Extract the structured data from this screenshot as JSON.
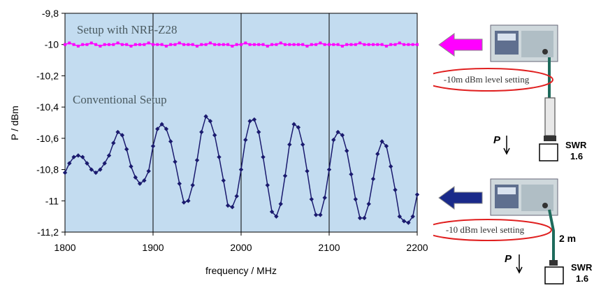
{
  "chart_data": {
    "type": "line",
    "xlabel": "frequency / MHz",
    "ylabel": "P / dBm",
    "xlim": [
      1800,
      2200
    ],
    "ylim": [
      -11.2,
      -9.8
    ],
    "x_ticks": [
      1800,
      1900,
      2000,
      2100,
      2200
    ],
    "y_ticks": [
      -9.8,
      -10,
      -10.2,
      -10.4,
      -10.6,
      -10.8,
      -11,
      -11.2
    ],
    "x_tick_labels": [
      "1800",
      "1900",
      "2000",
      "2100",
      "2200"
    ],
    "y_tick_labels": [
      "-9,8",
      "-10",
      "-10,2",
      "-10,4",
      "-10,6",
      "-10,8",
      "-11",
      "-11,2"
    ],
    "grid": "vertical lines at x ticks",
    "annotations": [
      "Setup with NRP-Z28",
      "Conventional Setup"
    ],
    "series": [
      {
        "color": "#ff00ff",
        "marker": "square",
        "x": [
          1800,
          1805,
          1810,
          1815,
          1820,
          1825,
          1830,
          1835,
          1840,
          1845,
          1850,
          1855,
          1860,
          1865,
          1870,
          1875,
          1880,
          1885,
          1890,
          1895,
          1900,
          1905,
          1910,
          1915,
          1920,
          1925,
          1930,
          1935,
          1940,
          1945,
          1950,
          1955,
          1960,
          1965,
          1970,
          1975,
          1980,
          1985,
          1990,
          1995,
          2000,
          2005,
          2010,
          2015,
          2020,
          2025,
          2030,
          2035,
          2040,
          2045,
          2050,
          2055,
          2060,
          2065,
          2070,
          2075,
          2080,
          2085,
          2090,
          2095,
          2100,
          2105,
          2110,
          2115,
          2120,
          2125,
          2130,
          2135,
          2140,
          2145,
          2150,
          2155,
          2160,
          2165,
          2170,
          2175,
          2180,
          2185,
          2190,
          2195,
          2200
        ],
        "y": [
          -10.0,
          -9.99,
          -10.0,
          -10.01,
          -10.0,
          -10.0,
          -9.99,
          -10.0,
          -10.01,
          -10.0,
          -10.0,
          -10.0,
          -9.99,
          -10.0,
          -10.0,
          -10.01,
          -10.0,
          -10.0,
          -10.0,
          -9.99,
          -10.0,
          -10.0,
          -10.0,
          -10.01,
          -10.0,
          -10.0,
          -9.99,
          -10.0,
          -10.0,
          -10.0,
          -10.01,
          -10.0,
          -10.0,
          -9.99,
          -10.0,
          -10.0,
          -10.0,
          -10.0,
          -10.01,
          -10.0,
          -10.0,
          -9.99,
          -10.0,
          -10.0,
          -10.0,
          -10.0,
          -10.01,
          -10.0,
          -10.0,
          -9.99,
          -10.0,
          -10.0,
          -10.0,
          -10.0,
          -10.0,
          -10.01,
          -10.0,
          -10.0,
          -9.99,
          -10.0,
          -10.0,
          -10.0,
          -10.0,
          -10.01,
          -10.0,
          -10.0,
          -10.0,
          -9.99,
          -10.0,
          -10.0,
          -10.0,
          -10.0,
          -10.0,
          -10.01,
          -10.0,
          -10.0,
          -9.99,
          -10.0,
          -10.0,
          -10.0,
          -10.0
        ]
      },
      {
        "color": "#1a1a6e",
        "marker": "diamond",
        "x": [
          1800,
          1805,
          1810,
          1815,
          1820,
          1825,
          1830,
          1835,
          1840,
          1845,
          1850,
          1855,
          1860,
          1865,
          1870,
          1875,
          1880,
          1885,
          1890,
          1895,
          1900,
          1905,
          1910,
          1915,
          1920,
          1925,
          1930,
          1935,
          1940,
          1945,
          1950,
          1955,
          1960,
          1965,
          1970,
          1975,
          1980,
          1985,
          1990,
          1995,
          2000,
          2005,
          2010,
          2015,
          2020,
          2025,
          2030,
          2035,
          2040,
          2045,
          2050,
          2055,
          2060,
          2065,
          2070,
          2075,
          2080,
          2085,
          2090,
          2095,
          2100,
          2105,
          2110,
          2115,
          2120,
          2125,
          2130,
          2135,
          2140,
          2145,
          2150,
          2155,
          2160,
          2165,
          2170,
          2175,
          2180,
          2185,
          2190,
          2195,
          2200
        ],
        "y": [
          -10.82,
          -10.76,
          -10.72,
          -10.71,
          -10.72,
          -10.76,
          -10.8,
          -10.82,
          -10.8,
          -10.76,
          -10.71,
          -10.63,
          -10.56,
          -10.58,
          -10.67,
          -10.78,
          -10.85,
          -10.89,
          -10.87,
          -10.81,
          -10.65,
          -10.54,
          -10.51,
          -10.54,
          -10.62,
          -10.75,
          -10.89,
          -11.01,
          -11.0,
          -10.9,
          -10.74,
          -10.56,
          -10.46,
          -10.49,
          -10.58,
          -10.72,
          -10.87,
          -11.03,
          -11.04,
          -10.97,
          -10.8,
          -10.61,
          -10.49,
          -10.48,
          -10.56,
          -10.72,
          -10.9,
          -11.07,
          -11.1,
          -11.02,
          -10.84,
          -10.64,
          -10.51,
          -10.53,
          -10.64,
          -10.81,
          -10.99,
          -11.09,
          -11.09,
          -10.98,
          -10.8,
          -10.61,
          -10.56,
          -10.58,
          -10.68,
          -10.83,
          -10.99,
          -11.11,
          -11.11,
          -11.02,
          -10.86,
          -10.7,
          -10.62,
          -10.65,
          -10.78,
          -10.93,
          -11.1,
          -11.13,
          -11.14,
          -11.1,
          -10.96
        ]
      }
    ]
  },
  "right_panel": {
    "top_setup": {
      "arrow_color": "#ff00ff",
      "level_label": "-10m dBm level setting",
      "power_label": "P",
      "swr_label_line1": "SWR",
      "swr_label_line2": "1.6"
    },
    "bottom_setup": {
      "arrow_color": "#1a2a8a",
      "level_label": "-10 dBm level setting",
      "cable_label": "2 m",
      "power_label": "P",
      "swr_label_line1": "SWR",
      "swr_label_line2": "1.6"
    },
    "highlight_color": "#e02020"
  }
}
